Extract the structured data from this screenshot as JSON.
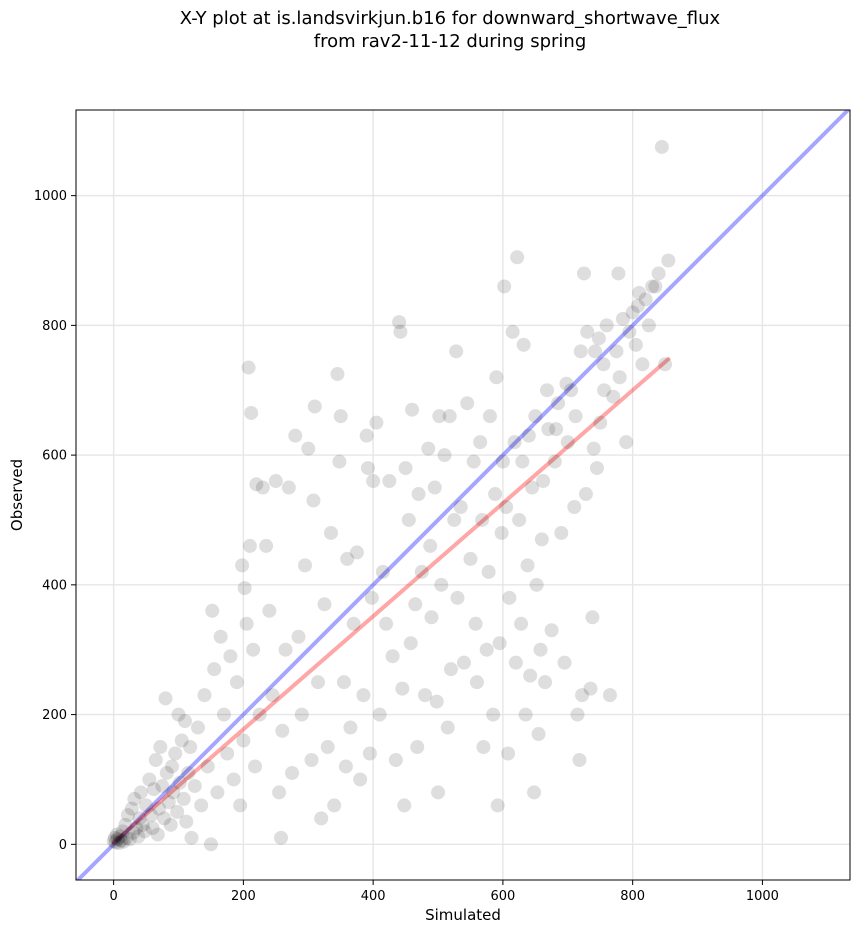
{
  "chart_data": {
    "type": "scatter",
    "title": "X-Y plot at is.landsvirkjun.b16 for downward_shortwave_flux",
    "subtitle": "from rav2-11-12 during spring",
    "xlabel": "Simulated",
    "ylabel": "Observed",
    "xlim": [
      -58,
      1135
    ],
    "ylim": [
      -55,
      1132
    ],
    "xticks": [
      0,
      200,
      400,
      600,
      800,
      1000
    ],
    "yticks": [
      0,
      200,
      400,
      600,
      800,
      1000
    ],
    "grid": true,
    "point_color": "#000000",
    "identity_line": {
      "color": "#0000ff",
      "from": [
        -58,
        -58
      ],
      "to": [
        1135,
        1135
      ]
    },
    "regression_line": {
      "color": "#ff0000",
      "from": [
        0,
        3
      ],
      "to": [
        855,
        748
      ]
    },
    "points": [
      [
        0,
        5
      ],
      [
        2,
        10
      ],
      [
        3,
        3
      ],
      [
        5,
        15
      ],
      [
        6,
        8
      ],
      [
        8,
        2
      ],
      [
        10,
        12
      ],
      [
        12,
        6
      ],
      [
        14,
        20
      ],
      [
        15,
        4
      ],
      [
        18,
        30
      ],
      [
        20,
        10
      ],
      [
        22,
        45
      ],
      [
        25,
        8
      ],
      [
        28,
        55
      ],
      [
        30,
        18
      ],
      [
        32,
        70
      ],
      [
        35,
        25
      ],
      [
        38,
        12
      ],
      [
        40,
        40
      ],
      [
        42,
        80
      ],
      [
        45,
        30
      ],
      [
        48,
        20
      ],
      [
        50,
        60
      ],
      [
        55,
        100
      ],
      [
        58,
        45
      ],
      [
        60,
        25
      ],
      [
        62,
        85
      ],
      [
        65,
        130
      ],
      [
        68,
        15
      ],
      [
        70,
        55
      ],
      [
        72,
        150
      ],
      [
        75,
        90
      ],
      [
        78,
        40
      ],
      [
        80,
        225
      ],
      [
        82,
        110
      ],
      [
        85,
        65
      ],
      [
        88,
        30
      ],
      [
        90,
        120
      ],
      [
        92,
        80
      ],
      [
        95,
        140
      ],
      [
        98,
        50
      ],
      [
        100,
        200
      ],
      [
        102,
        95
      ],
      [
        105,
        160
      ],
      [
        108,
        70
      ],
      [
        110,
        190
      ],
      [
        112,
        35
      ],
      [
        115,
        110
      ],
      [
        118,
        150
      ],
      [
        120,
        10
      ],
      [
        125,
        90
      ],
      [
        130,
        180
      ],
      [
        135,
        60
      ],
      [
        140,
        230
      ],
      [
        145,
        120
      ],
      [
        150,
        0
      ],
      [
        152,
        360
      ],
      [
        155,
        270
      ],
      [
        160,
        80
      ],
      [
        165,
        320
      ],
      [
        170,
        200
      ],
      [
        175,
        140
      ],
      [
        180,
        290
      ],
      [
        185,
        100
      ],
      [
        190,
        250
      ],
      [
        195,
        60
      ],
      [
        198,
        430
      ],
      [
        200,
        160
      ],
      [
        202,
        395
      ],
      [
        205,
        340
      ],
      [
        208,
        735
      ],
      [
        210,
        460
      ],
      [
        212,
        665
      ],
      [
        215,
        300
      ],
      [
        218,
        120
      ],
      [
        220,
        555
      ],
      [
        225,
        200
      ],
      [
        230,
        550
      ],
      [
        235,
        460
      ],
      [
        240,
        360
      ],
      [
        245,
        230
      ],
      [
        250,
        560
      ],
      [
        255,
        80
      ],
      [
        258,
        10
      ],
      [
        260,
        175
      ],
      [
        265,
        300
      ],
      [
        270,
        550
      ],
      [
        275,
        110
      ],
      [
        280,
        630
      ],
      [
        285,
        320
      ],
      [
        290,
        200
      ],
      [
        295,
        430
      ],
      [
        300,
        610
      ],
      [
        305,
        130
      ],
      [
        308,
        530
      ],
      [
        310,
        675
      ],
      [
        315,
        250
      ],
      [
        320,
        40
      ],
      [
        325,
        370
      ],
      [
        330,
        150
      ],
      [
        335,
        480
      ],
      [
        340,
        60
      ],
      [
        345,
        725
      ],
      [
        348,
        590
      ],
      [
        350,
        660
      ],
      [
        355,
        250
      ],
      [
        358,
        120
      ],
      [
        360,
        440
      ],
      [
        365,
        180
      ],
      [
        370,
        340
      ],
      [
        375,
        450
      ],
      [
        380,
        100
      ],
      [
        385,
        230
      ],
      [
        390,
        630
      ],
      [
        392,
        580
      ],
      [
        395,
        140
      ],
      [
        398,
        380
      ],
      [
        400,
        560
      ],
      [
        405,
        650
      ],
      [
        410,
        200
      ],
      [
        415,
        420
      ],
      [
        420,
        340
      ],
      [
        425,
        560
      ],
      [
        430,
        290
      ],
      [
        435,
        130
      ],
      [
        440,
        805
      ],
      [
        442,
        790
      ],
      [
        445,
        240
      ],
      [
        448,
        60
      ],
      [
        450,
        580
      ],
      [
        455,
        500
      ],
      [
        458,
        310
      ],
      [
        460,
        670
      ],
      [
        465,
        370
      ],
      [
        468,
        150
      ],
      [
        470,
        540
      ],
      [
        475,
        420
      ],
      [
        480,
        230
      ],
      [
        485,
        610
      ],
      [
        488,
        460
      ],
      [
        490,
        350
      ],
      [
        495,
        550
      ],
      [
        498,
        220
      ],
      [
        500,
        80
      ],
      [
        502,
        660
      ],
      [
        505,
        400
      ],
      [
        510,
        600
      ],
      [
        515,
        180
      ],
      [
        518,
        660
      ],
      [
        520,
        270
      ],
      [
        525,
        500
      ],
      [
        528,
        760
      ],
      [
        530,
        380
      ],
      [
        535,
        520
      ],
      [
        540,
        280
      ],
      [
        545,
        680
      ],
      [
        550,
        440
      ],
      [
        555,
        590
      ],
      [
        558,
        340
      ],
      [
        560,
        250
      ],
      [
        565,
        620
      ],
      [
        568,
        500
      ],
      [
        570,
        150
      ],
      [
        575,
        300
      ],
      [
        578,
        420
      ],
      [
        580,
        660
      ],
      [
        585,
        200
      ],
      [
        588,
        540
      ],
      [
        590,
        720
      ],
      [
        592,
        60
      ],
      [
        595,
        310
      ],
      [
        598,
        480
      ],
      [
        600,
        590
      ],
      [
        602,
        860
      ],
      [
        605,
        520
      ],
      [
        608,
        140
      ],
      [
        610,
        380
      ],
      [
        615,
        790
      ],
      [
        618,
        620
      ],
      [
        620,
        280
      ],
      [
        622,
        905
      ],
      [
        625,
        500
      ],
      [
        628,
        340
      ],
      [
        630,
        590
      ],
      [
        632,
        770
      ],
      [
        635,
        200
      ],
      [
        638,
        430
      ],
      [
        640,
        630
      ],
      [
        642,
        260
      ],
      [
        645,
        550
      ],
      [
        648,
        80
      ],
      [
        650,
        660
      ],
      [
        652,
        400
      ],
      [
        655,
        170
      ],
      [
        658,
        300
      ],
      [
        660,
        470
      ],
      [
        662,
        560
      ],
      [
        665,
        250
      ],
      [
        668,
        700
      ],
      [
        670,
        640
      ],
      [
        675,
        330
      ],
      [
        680,
        590
      ],
      [
        685,
        680
      ],
      [
        690,
        480
      ],
      [
        695,
        280
      ],
      [
        700,
        620
      ],
      [
        705,
        700
      ],
      [
        710,
        520
      ],
      [
        715,
        200
      ],
      [
        718,
        130
      ],
      [
        720,
        760
      ],
      [
        722,
        230
      ],
      [
        725,
        880
      ],
      [
        728,
        540
      ],
      [
        730,
        790
      ],
      [
        735,
        240
      ],
      [
        738,
        350
      ],
      [
        740,
        610
      ],
      [
        745,
        580
      ],
      [
        748,
        780
      ],
      [
        750,
        650
      ],
      [
        755,
        740
      ],
      [
        760,
        800
      ],
      [
        765,
        230
      ],
      [
        770,
        690
      ],
      [
        775,
        760
      ],
      [
        778,
        880
      ],
      [
        780,
        720
      ],
      [
        785,
        810
      ],
      [
        790,
        620
      ],
      [
        795,
        790
      ],
      [
        800,
        820
      ],
      [
        805,
        770
      ],
      [
        810,
        850
      ],
      [
        815,
        740
      ],
      [
        820,
        840
      ],
      [
        825,
        800
      ],
      [
        830,
        860
      ],
      [
        835,
        860
      ],
      [
        840,
        880
      ],
      [
        845,
        1075
      ],
      [
        850,
        740
      ],
      [
        855,
        900
      ],
      [
        712,
        660
      ],
      [
        698,
        710
      ],
      [
        682,
        640
      ],
      [
        742,
        760
      ],
      [
        756,
        700
      ],
      [
        808,
        830
      ]
    ]
  }
}
